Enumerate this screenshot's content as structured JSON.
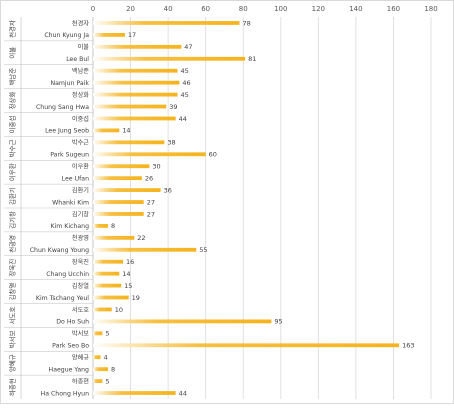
{
  "chart_data": {
    "type": "bar",
    "orientation": "horizontal",
    "bar_style": "gradient",
    "bar_color": "#f5b41e",
    "xlim": [
      0,
      180
    ],
    "x_ticks": [
      0,
      20,
      40,
      60,
      80,
      100,
      120,
      140,
      160,
      180
    ],
    "grid": true,
    "legend": "none",
    "groups": [
      {
        "name": "천경자",
        "rows": [
          {
            "label": "천경자",
            "value": 78
          },
          {
            "label": "Chun Kyung Ja",
            "value": 17
          }
        ]
      },
      {
        "name": "이불",
        "rows": [
          {
            "label": "이불",
            "value": 47
          },
          {
            "label": "Lee Bul",
            "value": 81
          }
        ]
      },
      {
        "name": "백남준",
        "rows": [
          {
            "label": "백남준",
            "value": 45
          },
          {
            "label": "Namjun Paik",
            "value": 46
          }
        ]
      },
      {
        "name": "정상화",
        "rows": [
          {
            "label": "정상화",
            "value": 45
          },
          {
            "label": "Chung Sang Hwa",
            "value": 39
          }
        ]
      },
      {
        "name": "이중섭",
        "rows": [
          {
            "label": "이중섭",
            "value": 44
          },
          {
            "label": "Lee Jung Seob",
            "value": 14
          }
        ]
      },
      {
        "name": "박수근",
        "rows": [
          {
            "label": "박수근",
            "value": 38
          },
          {
            "label": "Park Sugeun",
            "value": 60
          }
        ]
      },
      {
        "name": "이우환",
        "rows": [
          {
            "label": "이우환",
            "value": 30
          },
          {
            "label": "Lee Ufan",
            "value": 26
          }
        ]
      },
      {
        "name": "김환기",
        "rows": [
          {
            "label": "김환기",
            "value": 36
          },
          {
            "label": "Whanki Kim",
            "value": 27
          }
        ]
      },
      {
        "name": "김기창",
        "rows": [
          {
            "label": "김기창",
            "value": 27
          },
          {
            "label": "Kim Kichang",
            "value": 8
          }
        ]
      },
      {
        "name": "천광영",
        "rows": [
          {
            "label": "천광영",
            "value": 22
          },
          {
            "label": "Chun Kwang Young",
            "value": 55
          }
        ]
      },
      {
        "name": "장욱진",
        "rows": [
          {
            "label": "장욱진",
            "value": 16
          },
          {
            "label": "Chang Ucchin",
            "value": 14
          }
        ]
      },
      {
        "name": "김창열",
        "rows": [
          {
            "label": "김창열",
            "value": 15
          },
          {
            "label": "Kim Tschang Yeul",
            "value": 19
          }
        ]
      },
      {
        "name": "서도호",
        "rows": [
          {
            "label": "서도호",
            "value": 10
          },
          {
            "label": "Do Ho Suh",
            "value": 95
          }
        ]
      },
      {
        "name": "박서보",
        "rows": [
          {
            "label": "박서보",
            "value": 5
          },
          {
            "label": "Park Seo Bo",
            "value": 163
          }
        ]
      },
      {
        "name": "양혜규",
        "rows": [
          {
            "label": "양혜규",
            "value": 4
          },
          {
            "label": "Haegue Yang",
            "value": 8
          }
        ]
      },
      {
        "name": "하종현",
        "rows": [
          {
            "label": "하종현",
            "value": 5
          },
          {
            "label": "Ha Chong Hyun",
            "value": 44
          }
        ]
      }
    ]
  }
}
